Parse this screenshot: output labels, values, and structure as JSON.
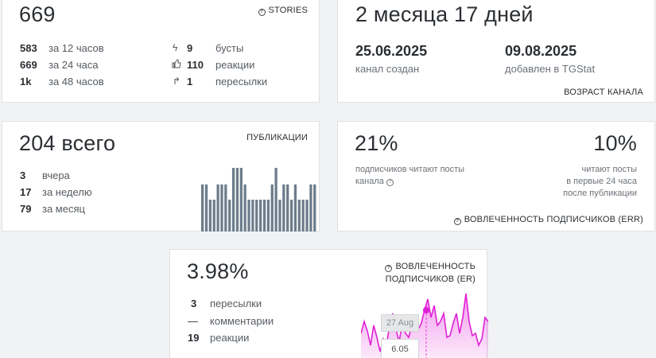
{
  "stories_card": {
    "value": "669",
    "tag": "STORIES",
    "views": [
      {
        "num": "583",
        "label": "за 12 часов"
      },
      {
        "num": "669",
        "label": "за 24 часа"
      },
      {
        "num": "1k",
        "label": "за 48 часов"
      }
    ],
    "stats": [
      {
        "icon": "lightning-icon",
        "num": "9",
        "label": "бусты"
      },
      {
        "icon": "thumbs-up-icon",
        "num": "110",
        "label": "реакции"
      },
      {
        "icon": "share-icon",
        "num": "1",
        "label": "пересылки"
      }
    ]
  },
  "age_card": {
    "value": "2 месяца 17 дней",
    "created_date": "25.06.2025",
    "created_label": "канал создан",
    "added_date": "09.08.2025",
    "added_label": "добавлен в TGStat",
    "tag": "ВОЗРАСТ КАНАЛА"
  },
  "pubs_card": {
    "value": "204 всего",
    "tag": "ПУБЛИКАЦИИ",
    "rows": [
      {
        "num": "3",
        "label": "вчера"
      },
      {
        "num": "17",
        "label": "за неделю"
      },
      {
        "num": "79",
        "label": "за месяц"
      }
    ],
    "bar_levels": [
      0.74,
      0.74,
      0.5,
      0.5,
      0.74,
      0.74,
      0.74,
      0.5,
      1.0,
      1.0,
      1.0,
      0.74,
      0.5,
      0.5,
      0.5,
      0.5,
      0.5,
      0.5,
      0.74,
      1.0,
      0.5,
      0.74,
      0.74,
      0.5,
      0.74,
      0.5,
      0.5,
      0.5,
      0.74,
      0.74
    ]
  },
  "err_card": {
    "left_value": "21%",
    "left_desc_1": "подписчиков читают посты",
    "left_desc_2": "канала",
    "right_value": "10%",
    "right_desc_1": "читают посты",
    "right_desc_2": "в первые 24 часа",
    "right_desc_3": "после публикации",
    "tag": "ВОВЛЕЧЕННОСТЬ ПОДПИСЧИКОВ (ERR)"
  },
  "er_card": {
    "value": "3.98%",
    "tag_line1": "ВОВЛЕЧЕННОСТЬ",
    "tag_line2": "ПОДПИСЧИКОВ (ER)",
    "rows": [
      {
        "num": "3",
        "label": "пересылки"
      },
      {
        "num": "—",
        "label": "комментарии"
      },
      {
        "num": "19",
        "label": "реакции"
      }
    ],
    "tooltip_date": "27 Aug",
    "tooltip_value": "6.05",
    "accent": "#e020d6"
  }
}
